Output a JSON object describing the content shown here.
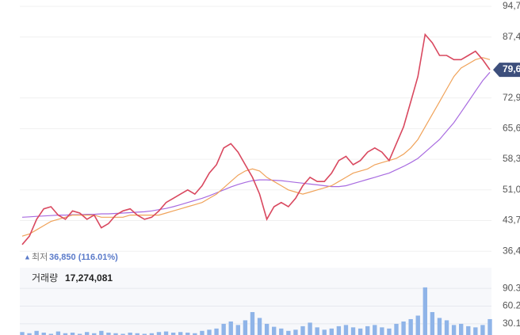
{
  "chart_data": [
    {
      "type": "line",
      "ylim": [
        34000,
        96200
      ],
      "yticks": [
        {
          "value": 94700,
          "label": "94,7"
        },
        {
          "value": 87400,
          "label": "87,4"
        },
        {
          "value": 72900,
          "label": "72,9"
        },
        {
          "value": 65600,
          "label": "65,6"
        },
        {
          "value": 58300,
          "label": "58,3"
        },
        {
          "value": 51000,
          "label": "51,0"
        },
        {
          "value": 43700,
          "label": "43,7"
        },
        {
          "value": 36400,
          "label": "36,4"
        }
      ],
      "grid": true,
      "current_price": {
        "value": 79600,
        "label": "79,6"
      },
      "annotations": [
        {
          "label": "최저",
          "text": "36,850 (116.01%)"
        }
      ],
      "series": [
        {
          "color": "#d9485f",
          "values": [
            38000,
            40000,
            44000,
            46500,
            47000,
            45000,
            44000,
            46000,
            45500,
            44000,
            45000,
            42000,
            43000,
            45000,
            46000,
            46500,
            45000,
            44000,
            44500,
            46000,
            48000,
            49000,
            50000,
            51000,
            50000,
            52000,
            55000,
            57000,
            61000,
            62000,
            60000,
            57000,
            54000,
            50000,
            44000,
            47000,
            48000,
            47000,
            49000,
            52000,
            54000,
            53000,
            53000,
            55000,
            58000,
            59000,
            57000,
            58000,
            60000,
            61000,
            60000,
            58000,
            62000,
            66000,
            72000,
            78000,
            88000,
            86000,
            83000,
            83000,
            82000,
            82000,
            83000,
            84000,
            82000,
            79600
          ]
        },
        {
          "color": "#f0a35a",
          "values": [
            40000,
            40500,
            41500,
            42500,
            43500,
            44000,
            44500,
            45000,
            45000,
            45000,
            45000,
            44500,
            44500,
            44500,
            44500,
            45000,
            45000,
            45000,
            45000,
            45000,
            45500,
            46000,
            46500,
            47000,
            47500,
            48000,
            49000,
            50000,
            51500,
            53000,
            54500,
            55500,
            56000,
            55500,
            54000,
            53000,
            52000,
            51000,
            50500,
            50000,
            50500,
            51000,
            51500,
            52000,
            53000,
            54000,
            55000,
            55500,
            56000,
            57000,
            57500,
            58000,
            58500,
            59500,
            61000,
            63000,
            66000,
            69000,
            72000,
            75000,
            78000,
            80000,
            81000,
            82000,
            82500,
            82000
          ]
        },
        {
          "color": "#a86be0",
          "values": [
            44500,
            44600,
            44700,
            44800,
            44900,
            45000,
            45000,
            45100,
            45100,
            45200,
            45200,
            45300,
            45300,
            45400,
            45500,
            45600,
            45700,
            45800,
            46000,
            46300,
            46600,
            47000,
            47500,
            48000,
            48500,
            49000,
            49600,
            50300,
            51000,
            51700,
            52300,
            52800,
            53200,
            53400,
            53400,
            53300,
            53200,
            53000,
            52800,
            52600,
            52400,
            52200,
            52000,
            51800,
            51800,
            52000,
            52500,
            53000,
            53500,
            54000,
            54500,
            55000,
            55800,
            56600,
            57500,
            58500,
            60000,
            61500,
            63000,
            65000,
            67000,
            69500,
            72000,
            74500,
            77000,
            79000
          ]
        }
      ]
    },
    {
      "type": "bar",
      "title": "거래량",
      "subtitle": "17,274,081",
      "ylim": [
        11,
        125.5
      ],
      "yticks": [
        90.3,
        60.2,
        30.1
      ],
      "grid": true,
      "color": "#8fb4e8",
      "values": [
        16,
        14,
        18,
        15,
        13,
        17,
        14,
        15,
        13,
        16,
        14,
        18,
        15,
        14,
        13,
        15,
        14,
        13,
        14,
        16,
        17,
        15,
        16,
        15,
        14,
        18,
        20,
        22,
        30,
        34,
        28,
        36,
        50,
        40,
        30,
        25,
        22,
        18,
        20,
        26,
        32,
        24,
        20,
        22,
        26,
        28,
        24,
        22,
        26,
        28,
        24,
        22,
        30,
        34,
        38,
        44,
        92,
        50,
        40,
        36,
        28,
        30,
        26,
        24,
        28,
        38
      ]
    }
  ]
}
